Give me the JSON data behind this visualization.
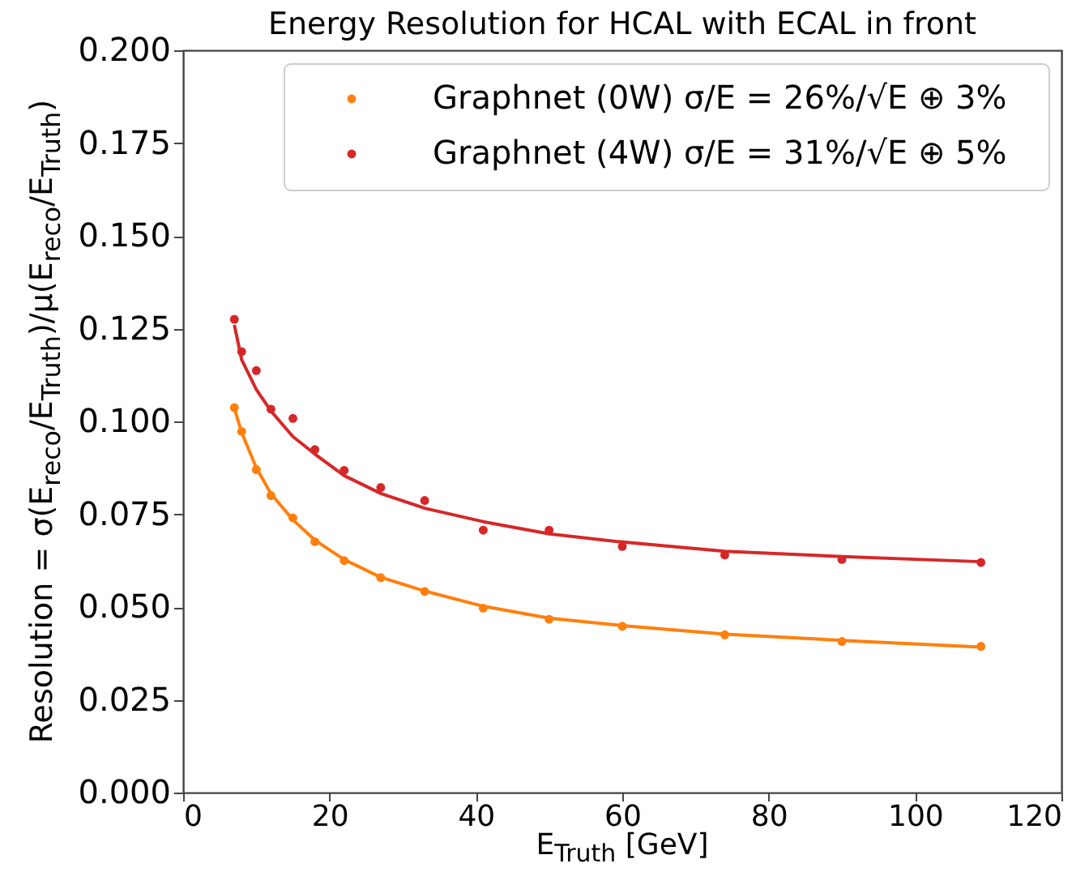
{
  "chart_data": {
    "type": "scatter",
    "title": "Energy Resolution for HCAL with  ECAL in front",
    "xlabel": "E$_{Truth}$ [GeV]",
    "ylabel": "Resolution = σ(E$_{reco}$/E$_{Truth}$)/μ(E$_{reco}$/E$_{Truth}$)",
    "xlim": [
      0,
      120
    ],
    "xticks": [
      0,
      20,
      40,
      60,
      80,
      100,
      120
    ],
    "ylim": [
      0,
      0.2
    ],
    "yticks": [
      {
        "value": 0,
        "label": "0.000"
      },
      0.025,
      {
        "value": 0.05,
        "label": "0.050"
      },
      0.075,
      {
        "value": 0.1,
        "label": "0.100"
      },
      0.125,
      {
        "value": 0.15,
        "label": "0.150"
      },
      0.175,
      {
        "value": 0.2,
        "label": "0.200"
      }
    ],
    "grid": false,
    "legend": "top right",
    "marker": "circle",
    "x": [
      7,
      8,
      10,
      12,
      15,
      18,
      22,
      27,
      33,
      41,
      50,
      60,
      74,
      90,
      109
    ],
    "series": [
      {
        "name": "Graphnet (0W) σ/E = 26%/√E   ⊕ 3%",
        "color": "#ff7f0e",
        "values": [
          0.1037,
          0.0973,
          0.087,
          0.08,
          0.074,
          0.0676,
          0.0625,
          0.0579,
          0.0542,
          0.0497,
          0.0467,
          0.0448,
          0.0425,
          0.0407,
          0.0394
        ]
      },
      {
        "name": "Graphnet (4W) σ/E = 31%/√E   ⊕ 5%",
        "color": "#d62728",
        "values": [
          0.1275,
          0.1188,
          0.1137,
          0.1033,
          0.1008,
          0.0924,
          0.0868,
          0.0822,
          0.0787,
          0.0707,
          0.0707,
          0.0663,
          0.064,
          0.0628,
          0.062
        ]
      },
      {
        "type": "line",
        "marker": "none",
        "color": "#ff7f0e",
        "values": [
          0.1035,
          0.097,
          0.0875,
          0.0805,
          0.0735,
          0.068,
          0.0628,
          0.058,
          0.0543,
          0.0502,
          0.047,
          0.045,
          0.0427,
          0.041,
          0.0392
        ]
      },
      {
        "type": "line",
        "marker": "none",
        "color": "#d62728",
        "values": [
          0.126,
          0.1166,
          0.1086,
          0.1028,
          0.0959,
          0.0912,
          0.0854,
          0.0806,
          0.0766,
          0.073,
          0.0697,
          0.0675,
          0.065,
          0.0636,
          0.0622
        ]
      }
    ]
  }
}
